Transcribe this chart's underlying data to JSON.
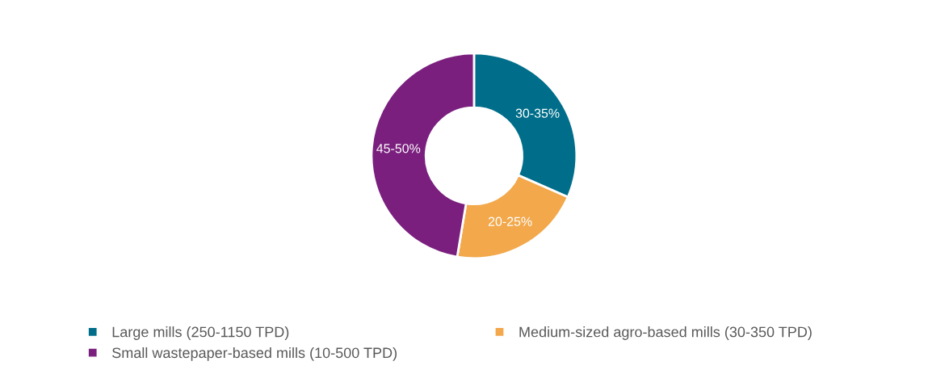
{
  "chart_data": {
    "type": "donut",
    "categories": [
      "Large mills (250-1150 TPD)",
      "Medium-sized agro-based mills (30-350 TPD)",
      "Small wastepaper-based mills (10-500 TPD)"
    ],
    "values": [
      30,
      20,
      45
    ],
    "colors": [
      "#006e8a",
      "#f2a84b",
      "#7a1f7e"
    ],
    "value_labels": [
      "30-35%",
      "20-25%",
      "45-50%"
    ],
    "legend": "bottom"
  }
}
